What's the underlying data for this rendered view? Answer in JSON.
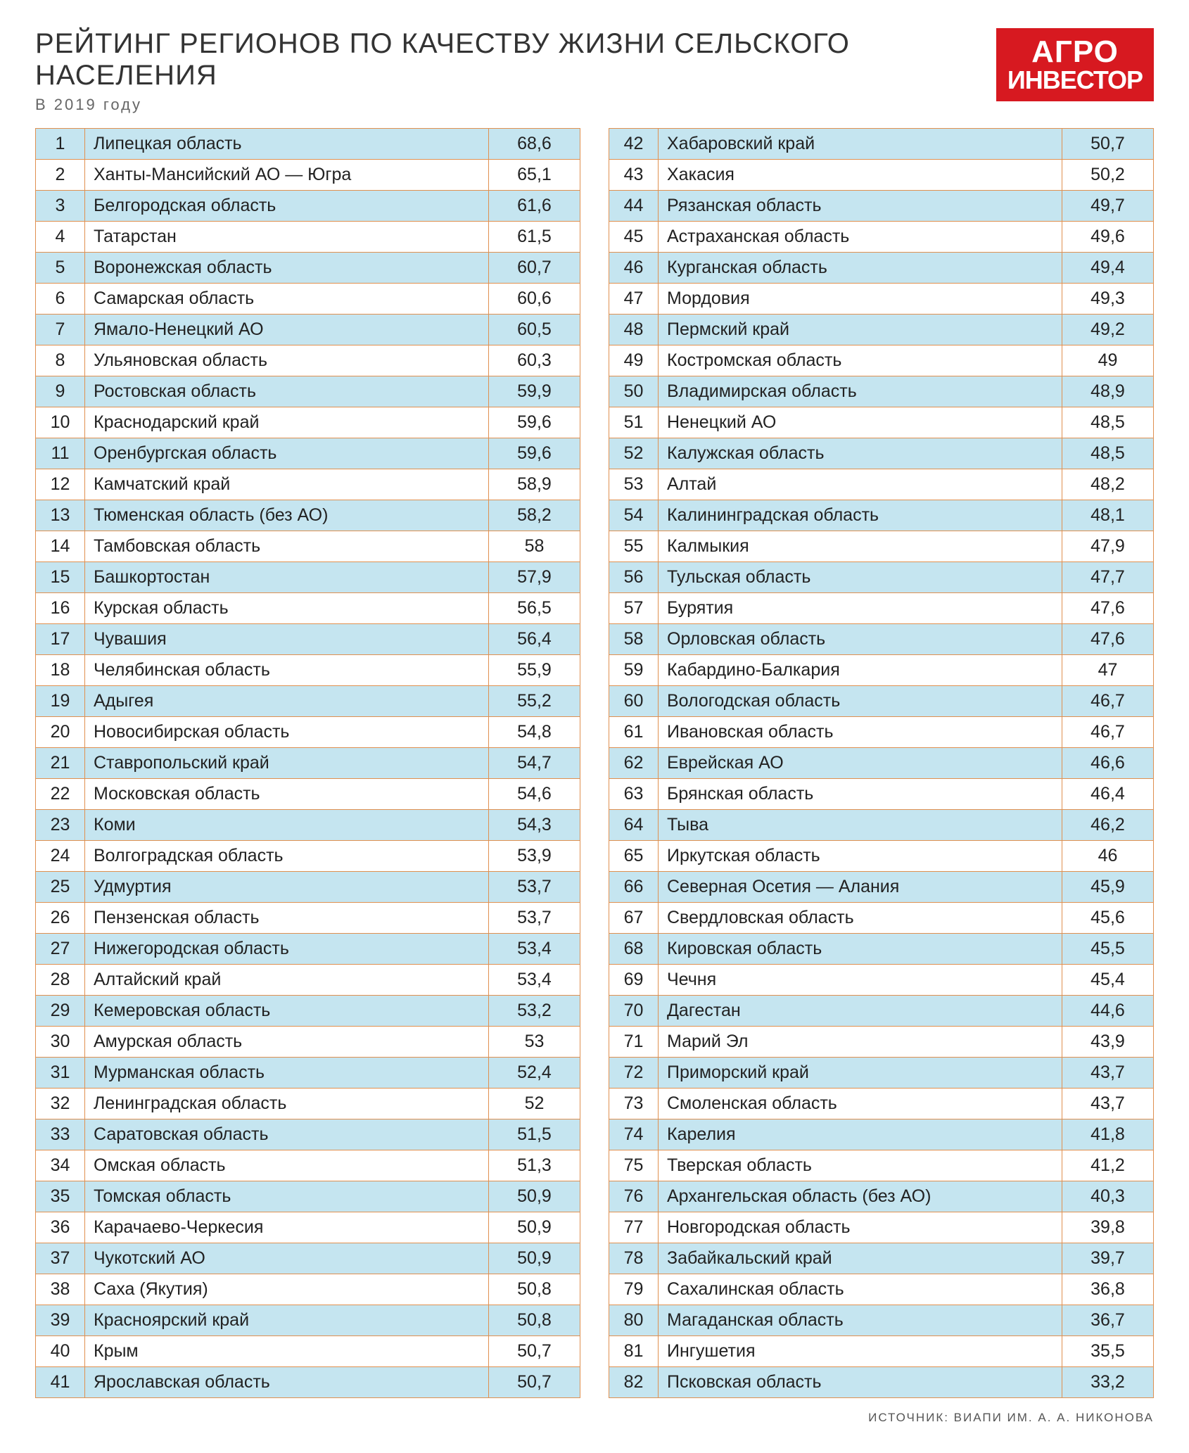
{
  "title": "РЕЙТИНГ РЕГИОНОВ ПО КАЧЕСТВУ ЖИЗНИ СЕЛЬСКОГО НАСЕЛЕНИЯ",
  "subtitle": "В 2019 году",
  "logo_line1": "АГРО",
  "logo_line2": "ИНВЕСТОР",
  "source": "ИСТОЧНИК: ВИАПИ ИМ. А. А. НИКОНОВА",
  "colors": {
    "row_odd": "#c5e5f0",
    "row_even": "#ffffff",
    "border": "#e09050",
    "logo_bg": "#d71920",
    "logo_text": "#ffffff",
    "text": "#222222",
    "title_text": "#333333",
    "subtitle_text": "#666666"
  },
  "table_style": {
    "rank_col_width": 70,
    "value_col_width": 130,
    "font_size": 25,
    "title_font_size": 40,
    "subtitle_font_size": 22
  },
  "ranking_left": [
    {
      "rank": "1",
      "region": "Липецкая область",
      "value": "68,6"
    },
    {
      "rank": "2",
      "region": "Ханты-Мансийский АО — Югра",
      "value": "65,1"
    },
    {
      "rank": "3",
      "region": "Белгородская область",
      "value": "61,6"
    },
    {
      "rank": "4",
      "region": "Татарстан",
      "value": "61,5"
    },
    {
      "rank": "5",
      "region": "Воронежская область",
      "value": "60,7"
    },
    {
      "rank": "6",
      "region": "Самарская область",
      "value": "60,6"
    },
    {
      "rank": "7",
      "region": "Ямало-Ненецкий АО",
      "value": "60,5"
    },
    {
      "rank": "8",
      "region": "Ульяновская область",
      "value": "60,3"
    },
    {
      "rank": "9",
      "region": "Ростовская область",
      "value": "59,9"
    },
    {
      "rank": "10",
      "region": "Краснодарский край",
      "value": "59,6"
    },
    {
      "rank": "11",
      "region": "Оренбургская область",
      "value": "59,6"
    },
    {
      "rank": "12",
      "region": "Камчатский край",
      "value": "58,9"
    },
    {
      "rank": "13",
      "region": "Тюменская область (без АО)",
      "value": "58,2"
    },
    {
      "rank": "14",
      "region": "Тамбовская область",
      "value": "58"
    },
    {
      "rank": "15",
      "region": "Башкортостан",
      "value": "57,9"
    },
    {
      "rank": "16",
      "region": "Курская область",
      "value": "56,5"
    },
    {
      "rank": "17",
      "region": "Чувашия",
      "value": "56,4"
    },
    {
      "rank": "18",
      "region": "Челябинская область",
      "value": "55,9"
    },
    {
      "rank": "19",
      "region": "Адыгея",
      "value": "55,2"
    },
    {
      "rank": "20",
      "region": "Новосибирская область",
      "value": "54,8"
    },
    {
      "rank": "21",
      "region": "Ставропольский край",
      "value": "54,7"
    },
    {
      "rank": "22",
      "region": "Московская область",
      "value": "54,6"
    },
    {
      "rank": "23",
      "region": "Коми",
      "value": "54,3"
    },
    {
      "rank": "24",
      "region": "Волгоградская область",
      "value": "53,9"
    },
    {
      "rank": "25",
      "region": "Удмуртия",
      "value": "53,7"
    },
    {
      "rank": "26",
      "region": "Пензенская область",
      "value": "53,7"
    },
    {
      "rank": "27",
      "region": "Нижегородская область",
      "value": "53,4"
    },
    {
      "rank": "28",
      "region": "Алтайский край",
      "value": "53,4"
    },
    {
      "rank": "29",
      "region": "Кемеровская область",
      "value": "53,2"
    },
    {
      "rank": "30",
      "region": "Амурская область",
      "value": "53"
    },
    {
      "rank": "31",
      "region": "Мурманская область",
      "value": "52,4"
    },
    {
      "rank": "32",
      "region": "Ленинградская область",
      "value": "52"
    },
    {
      "rank": "33",
      "region": "Саратовская область",
      "value": "51,5"
    },
    {
      "rank": "34",
      "region": "Омская область",
      "value": "51,3"
    },
    {
      "rank": "35",
      "region": "Томская область",
      "value": "50,9"
    },
    {
      "rank": "36",
      "region": "Карачаево-Черкесия",
      "value": "50,9"
    },
    {
      "rank": "37",
      "region": "Чукотский АО",
      "value": "50,9"
    },
    {
      "rank": "38",
      "region": "Саха (Якутия)",
      "value": "50,8"
    },
    {
      "rank": "39",
      "region": "Красноярский край",
      "value": "50,8"
    },
    {
      "rank": "40",
      "region": "Крым",
      "value": "50,7"
    },
    {
      "rank": "41",
      "region": "Ярославская область",
      "value": "50,7"
    }
  ],
  "ranking_right": [
    {
      "rank": "42",
      "region": "Хабаровский край",
      "value": "50,7"
    },
    {
      "rank": "43",
      "region": "Хакасия",
      "value": "50,2"
    },
    {
      "rank": "44",
      "region": "Рязанская область",
      "value": "49,7"
    },
    {
      "rank": "45",
      "region": "Астраханская область",
      "value": "49,6"
    },
    {
      "rank": "46",
      "region": "Курганская область",
      "value": "49,4"
    },
    {
      "rank": "47",
      "region": "Мордовия",
      "value": "49,3"
    },
    {
      "rank": "48",
      "region": "Пермский край",
      "value": "49,2"
    },
    {
      "rank": "49",
      "region": "Костромская область",
      "value": "49"
    },
    {
      "rank": "50",
      "region": "Владимирская область",
      "value": "48,9"
    },
    {
      "rank": "51",
      "region": "Ненецкий АО",
      "value": "48,5"
    },
    {
      "rank": "52",
      "region": "Калужская область",
      "value": "48,5"
    },
    {
      "rank": "53",
      "region": "Алтай",
      "value": "48,2"
    },
    {
      "rank": "54",
      "region": "Калининградская область",
      "value": "48,1"
    },
    {
      "rank": "55",
      "region": "Калмыкия",
      "value": "47,9"
    },
    {
      "rank": "56",
      "region": "Тульская область",
      "value": "47,7"
    },
    {
      "rank": "57",
      "region": "Бурятия",
      "value": "47,6"
    },
    {
      "rank": "58",
      "region": "Орловская область",
      "value": "47,6"
    },
    {
      "rank": "59",
      "region": "Кабардино-Балкария",
      "value": "47"
    },
    {
      "rank": "60",
      "region": "Вологодская область",
      "value": "46,7"
    },
    {
      "rank": "61",
      "region": "Ивановская область",
      "value": "46,7"
    },
    {
      "rank": "62",
      "region": "Еврейская АО",
      "value": "46,6"
    },
    {
      "rank": "63",
      "region": "Брянская область",
      "value": "46,4"
    },
    {
      "rank": "64",
      "region": "Тыва",
      "value": "46,2"
    },
    {
      "rank": "65",
      "region": "Иркутская область",
      "value": "46"
    },
    {
      "rank": "66",
      "region": "Северная Осетия — Алания",
      "value": "45,9"
    },
    {
      "rank": "67",
      "region": "Свердловская область",
      "value": "45,6"
    },
    {
      "rank": "68",
      "region": "Кировская область",
      "value": "45,5"
    },
    {
      "rank": "69",
      "region": "Чечня",
      "value": "45,4"
    },
    {
      "rank": "70",
      "region": "Дагестан",
      "value": "44,6"
    },
    {
      "rank": "71",
      "region": "Марий Эл",
      "value": "43,9"
    },
    {
      "rank": "72",
      "region": "Приморский край",
      "value": "43,7"
    },
    {
      "rank": "73",
      "region": "Смоленская область",
      "value": "43,7"
    },
    {
      "rank": "74",
      "region": "Карелия",
      "value": "41,8"
    },
    {
      "rank": "75",
      "region": "Тверская область",
      "value": "41,2"
    },
    {
      "rank": "76",
      "region": "Архангельская область (без АО)",
      "value": "40,3"
    },
    {
      "rank": "77",
      "region": "Новгородская область",
      "value": "39,8"
    },
    {
      "rank": "78",
      "region": "Забайкальский край",
      "value": "39,7"
    },
    {
      "rank": "79",
      "region": "Сахалинская область",
      "value": "36,8"
    },
    {
      "rank": "80",
      "region": "Магаданская область",
      "value": "36,7"
    },
    {
      "rank": "81",
      "region": "Ингушетия",
      "value": "35,5"
    },
    {
      "rank": "82",
      "region": "Псковская область",
      "value": "33,2"
    }
  ]
}
